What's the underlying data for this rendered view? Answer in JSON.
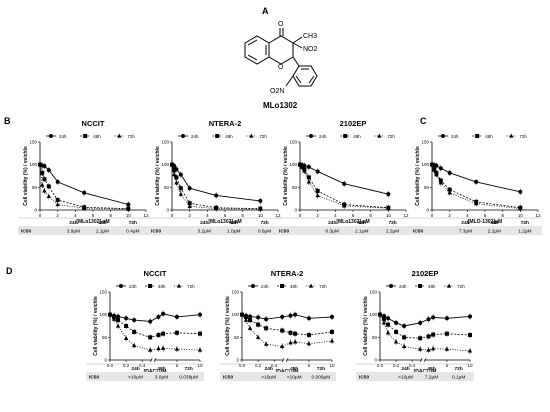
{
  "figure": {
    "panel_labels": {
      "A": "A",
      "B": "B",
      "C": "C",
      "D": "D"
    },
    "molecule": {
      "name": "MLo1302",
      "groups": {
        "carbonyl": "O",
        "methyl": "CH3",
        "nitro1": "NO2",
        "nitro2": "O2N",
        "ring_o": "O"
      }
    },
    "colors": {
      "ink": "#000000",
      "table_bg": "#e6e6e6",
      "axis": "#000000"
    },
    "time_labels": [
      "24h",
      "48h",
      "72h"
    ],
    "ic50_label": "IC50"
  },
  "chart_data": [
    {
      "type": "line",
      "panel": "B",
      "title": "NCCIT",
      "xlabel": "[MLo1302] μM",
      "ylabel": "Cell viability (%) / veichle",
      "xlim": [
        0,
        12
      ],
      "ylim": [
        0,
        150
      ],
      "xticks": [
        0,
        2,
        4,
        6,
        8,
        10,
        12
      ],
      "yticks": [
        0,
        50,
        100,
        150
      ],
      "legend": "top",
      "series": [
        {
          "name": "24h",
          "x": [
            0,
            0.25,
            0.5,
            1,
            2,
            5,
            10
          ],
          "y": [
            100,
            98,
            97,
            88,
            62,
            38,
            12
          ]
        },
        {
          "name": "48h",
          "x": [
            0,
            0.25,
            0.5,
            1,
            2,
            5,
            10
          ],
          "y": [
            100,
            82,
            68,
            52,
            22,
            6,
            3
          ]
        },
        {
          "name": "72h",
          "x": [
            0,
            0.25,
            0.5,
            1,
            2,
            5,
            10
          ],
          "y": [
            100,
            55,
            42,
            30,
            12,
            4,
            2
          ]
        }
      ],
      "ic50": [
        "3.9μM",
        "1.1μM",
        "0.4μM"
      ]
    },
    {
      "type": "line",
      "panel": "B",
      "title": "NTERA-2",
      "xlabel": "[MLo1302] μM",
      "ylabel": "Cell viability (%) / veichle",
      "xlim": [
        0,
        12
      ],
      "ylim": [
        0,
        150
      ],
      "xticks": [
        0,
        2,
        4,
        6,
        8,
        10,
        12
      ],
      "yticks": [
        0,
        50,
        100,
        150
      ],
      "legend": "top",
      "series": [
        {
          "name": "24h",
          "x": [
            0,
            0.25,
            0.5,
            1,
            2,
            5,
            10
          ],
          "y": [
            100,
            97,
            90,
            78,
            48,
            32,
            20
          ]
        },
        {
          "name": "48h",
          "x": [
            0,
            0.25,
            0.5,
            1,
            2,
            5,
            10
          ],
          "y": [
            100,
            88,
            72,
            48,
            15,
            5,
            3
          ]
        },
        {
          "name": "72h",
          "x": [
            0,
            0.25,
            0.5,
            1,
            2,
            5,
            10
          ],
          "y": [
            100,
            78,
            60,
            35,
            8,
            3,
            2
          ]
        }
      ],
      "ic50": [
        "3.2μM",
        "1.0μM",
        "0.6μM"
      ]
    },
    {
      "type": "line",
      "panel": "B",
      "title": "2102EP",
      "xlabel": "[MLo1302] μM",
      "ylabel": "Cell viability (%) / veichle",
      "xlim": [
        0,
        12
      ],
      "ylim": [
        0,
        150
      ],
      "xticks": [
        0,
        2,
        4,
        6,
        8,
        10,
        12
      ],
      "yticks": [
        0,
        50,
        100,
        150
      ],
      "legend": "top",
      "series": [
        {
          "name": "24h",
          "x": [
            0,
            0.25,
            0.5,
            1,
            2,
            5,
            10
          ],
          "y": [
            100,
            99,
            98,
            95,
            85,
            58,
            35
          ]
        },
        {
          "name": "48h",
          "x": [
            0,
            0.25,
            0.5,
            1,
            2,
            5,
            10
          ],
          "y": [
            100,
            96,
            90,
            72,
            42,
            12,
            5
          ]
        },
        {
          "name": "72h",
          "x": [
            0,
            0.25,
            0.5,
            1,
            2,
            5,
            10
          ],
          "y": [
            100,
            94,
            86,
            62,
            32,
            9,
            4
          ]
        }
      ],
      "ic50": [
        "6.3μM",
        "2.1μM",
        "2.2μM"
      ]
    },
    {
      "type": "line",
      "panel": "C",
      "title": "",
      "xlabel": "[MLO-1302]μM",
      "ylabel": "Cell viability (%) / veichle",
      "xlim": [
        0,
        12
      ],
      "ylim": [
        0,
        150
      ],
      "xticks": [
        0,
        2,
        4,
        6,
        8,
        10,
        12
      ],
      "yticks": [
        0,
        50,
        100,
        150
      ],
      "legend": "top",
      "series": [
        {
          "name": "24h",
          "x": [
            0,
            0.25,
            0.5,
            1,
            2,
            5,
            10
          ],
          "y": [
            100,
            99,
            98,
            92,
            82,
            62,
            40
          ]
        },
        {
          "name": "48h",
          "x": [
            0,
            0.25,
            0.5,
            1,
            2,
            5,
            10
          ],
          "y": [
            100,
            90,
            82,
            65,
            45,
            18,
            5
          ]
        },
        {
          "name": "72h",
          "x": [
            0,
            0.25,
            0.5,
            1,
            2,
            5,
            10
          ],
          "y": [
            100,
            88,
            78,
            60,
            38,
            14,
            3
          ]
        }
      ],
      "ic50": [
        "7.3μM",
        "2.2μM",
        "1.2μM"
      ]
    },
    {
      "type": "line",
      "panel": "D",
      "title": "NCCIT",
      "xlabel": "[DAC] μM",
      "ylabel": "Cell viability (%) / veichle",
      "xlim": [
        0,
        10
      ],
      "ylim": [
        0,
        150
      ],
      "xticks": [
        0.0,
        0.2,
        0.4,
        5,
        10
      ],
      "yticks": [
        0,
        50,
        100,
        150
      ],
      "legend": "top",
      "series": [
        {
          "name": "24h",
          "x": [
            0,
            0.05,
            0.1,
            0.2,
            0.3,
            0.5,
            1,
            2,
            5,
            10
          ],
          "y": [
            100,
            98,
            96,
            92,
            88,
            85,
            95,
            102,
            95,
            100
          ]
        },
        {
          "name": "48h",
          "x": [
            0,
            0.05,
            0.1,
            0.2,
            0.3,
            0.5,
            1,
            2,
            5,
            10
          ],
          "y": [
            100,
            95,
            88,
            75,
            62,
            50,
            55,
            58,
            60,
            58
          ]
        },
        {
          "name": "72h",
          "x": [
            0,
            0.05,
            0.1,
            0.2,
            0.3,
            0.5,
            1,
            2,
            5,
            10
          ],
          "y": [
            100,
            90,
            75,
            48,
            32,
            22,
            25,
            26,
            24,
            22
          ]
        }
      ],
      "ic50": [
        ">10μM",
        "3.0μM",
        "0.038μM"
      ]
    },
    {
      "type": "line",
      "panel": "D",
      "title": "NTERA-2",
      "xlabel": "[DAC] μM",
      "ylabel": "Cell viability (%) / veichle",
      "xlim": [
        0,
        10
      ],
      "ylim": [
        0,
        150
      ],
      "xticks": [
        0.0,
        0.2,
        0.4,
        5,
        10
      ],
      "yticks": [
        0,
        50,
        100,
        150
      ],
      "legend": "top",
      "series": [
        {
          "name": "24h",
          "x": [
            0,
            0.05,
            0.1,
            0.2,
            0.3,
            0.5,
            1,
            2,
            5,
            10
          ],
          "y": [
            100,
            98,
            96,
            94,
            90,
            95,
            98,
            100,
            92,
            95
          ]
        },
        {
          "name": "48h",
          "x": [
            0,
            0.05,
            0.1,
            0.2,
            0.3,
            0.5,
            1,
            2,
            5,
            10
          ],
          "y": [
            100,
            95,
            88,
            78,
            70,
            65,
            60,
            58,
            55,
            62
          ]
        },
        {
          "name": "72h",
          "x": [
            0,
            0.05,
            0.1,
            0.2,
            0.3,
            0.5,
            1,
            2,
            5,
            10
          ],
          "y": [
            100,
            88,
            70,
            50,
            35,
            30,
            38,
            40,
            36,
            42
          ]
        }
      ],
      "ic50": [
        ">10μM",
        ">10μM",
        "0.009μM"
      ]
    },
    {
      "type": "line",
      "panel": "D",
      "title": "2102EP",
      "xlabel": "[DAC] μM",
      "ylabel": "Cell viability (%) / veichle",
      "xlim": [
        0,
        10
      ],
      "ylim": [
        0,
        150
      ],
      "xticks": [
        0.0,
        0.2,
        0.4,
        5,
        10
      ],
      "yticks": [
        0,
        50,
        100,
        150
      ],
      "legend": "top",
      "series": [
        {
          "name": "24h",
          "x": [
            0,
            0.05,
            0.1,
            0.2,
            0.3,
            0.5,
            1,
            2,
            5,
            10
          ],
          "y": [
            100,
            97,
            92,
            82,
            75,
            82,
            90,
            94,
            92,
            96
          ]
        },
        {
          "name": "48h",
          "x": [
            0,
            0.05,
            0.1,
            0.2,
            0.3,
            0.5,
            1,
            2,
            5,
            10
          ],
          "y": [
            100,
            90,
            78,
            62,
            50,
            48,
            52,
            56,
            58,
            55
          ]
        },
        {
          "name": "72h",
          "x": [
            0,
            0.05,
            0.1,
            0.2,
            0.3,
            0.5,
            1,
            2,
            5,
            10
          ],
          "y": [
            100,
            82,
            60,
            40,
            30,
            24,
            22,
            25,
            24,
            20
          ]
        }
      ],
      "ic50": [
        ">10μM",
        "7.2μM",
        "0.1μM"
      ]
    }
  ]
}
